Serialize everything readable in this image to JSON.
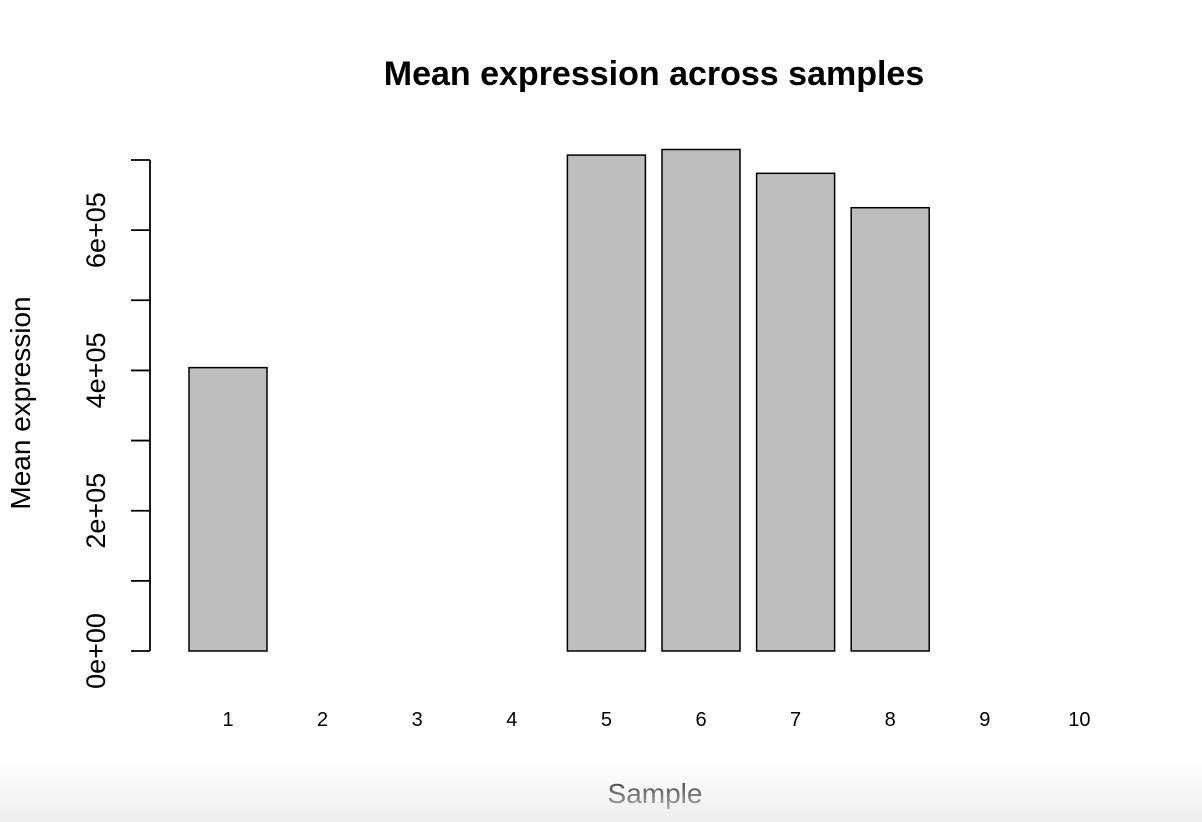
{
  "chart_data": {
    "type": "bar",
    "title": "Mean expression across samples",
    "xlabel": "Sample",
    "ylabel": "Mean expression",
    "categories": [
      "1",
      "2",
      "3",
      "4",
      "5",
      "6",
      "7",
      "8",
      "9",
      "10"
    ],
    "values": [
      404000,
      0,
      0,
      0,
      707000,
      715000,
      681000,
      632000,
      0,
      0
    ],
    "ylim": [
      0,
      700000
    ],
    "y_ticks": [
      0,
      100000,
      200000,
      300000,
      400000,
      500000,
      600000,
      700000
    ],
    "y_tick_labels": [
      {
        "value": 0,
        "label": "0e+00"
      },
      {
        "value": 200000,
        "label": "2e+05"
      },
      {
        "value": 400000,
        "label": "4e+05"
      },
      {
        "value": 600000,
        "label": "6e+05"
      }
    ],
    "bar_color": "#bebebe",
    "grid": false,
    "legend": "none"
  }
}
